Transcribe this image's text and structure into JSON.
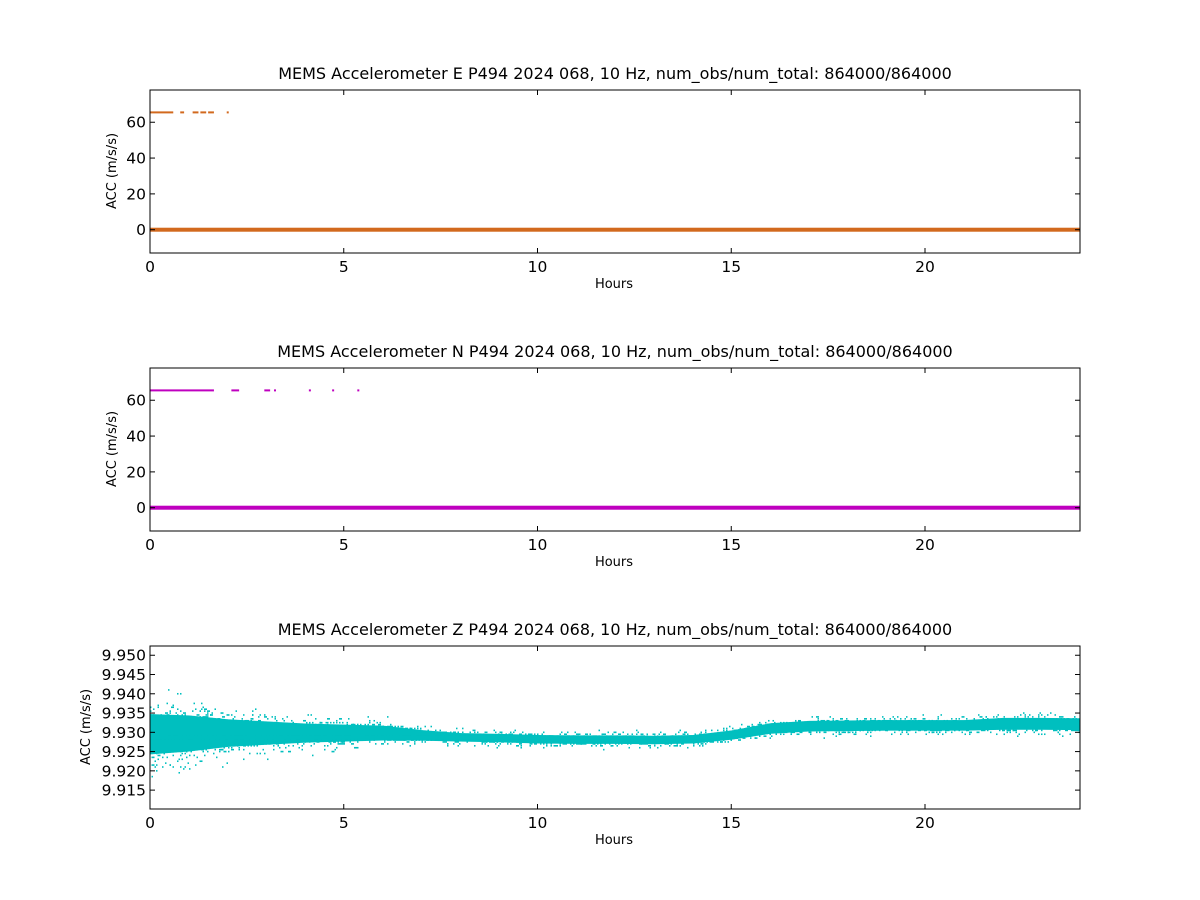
{
  "chart_data": [
    {
      "type": "scatter",
      "title": "MEMS Accelerometer E P494 2024 068, 10 Hz, num_obs/num_total: 864000/864000",
      "xlabel": "Hours",
      "ylabel": "ACC (m/s/s)",
      "xlim": [
        0,
        24
      ],
      "ylim": [
        -13,
        78
      ],
      "xticks": [
        "0",
        "5",
        "10",
        "15",
        "20"
      ],
      "yticks": [
        "0",
        "20",
        "40",
        "60"
      ],
      "grid": false,
      "color": "#d2691e",
      "series": [
        {
          "baseline": {
            "x_range": [
              0,
              24
            ],
            "y": 0
          },
          "outliers": {
            "y": 65.5,
            "segments": [
              [
                0,
                0.6
              ],
              [
                0.78,
                0.88
              ],
              [
                1.1,
                1.25
              ],
              [
                1.3,
                1.45
              ],
              [
                1.5,
                1.65
              ],
              [
                1.98,
                2.01
              ]
            ]
          }
        }
      ]
    },
    {
      "type": "scatter",
      "title": "MEMS Accelerometer N P494 2024 068, 10 Hz, num_obs/num_total: 864000/864000",
      "xlabel": "Hours",
      "ylabel": "ACC (m/s/s)",
      "xlim": [
        0,
        24
      ],
      "ylim": [
        -13,
        78
      ],
      "xticks": [
        "0",
        "5",
        "10",
        "15",
        "20"
      ],
      "yticks": [
        "0",
        "20",
        "40",
        "60"
      ],
      "grid": false,
      "color": "#bf00bf",
      "series": [
        {
          "baseline": {
            "x_range": [
              0,
              24
            ],
            "y": 0
          },
          "outliers": {
            "y": 65.5,
            "segments": [
              [
                0,
                1.65
              ],
              [
                2.1,
                2.3
              ],
              [
                2.95,
                3.1
              ],
              [
                3.2,
                3.25
              ],
              [
                4.1,
                4.15
              ],
              [
                4.7,
                4.75
              ],
              [
                5.35,
                5.4
              ]
            ]
          }
        }
      ]
    },
    {
      "type": "scatter",
      "title": "MEMS Accelerometer Z P494 2024 068, 10 Hz, num_obs/num_total: 864000/864000",
      "xlabel": "Hours",
      "ylabel": "ACC (m/s/s)",
      "xlim": [
        0,
        24
      ],
      "ylim": [
        9.9101,
        9.9524
      ],
      "xticks": [
        "0",
        "5",
        "10",
        "15",
        "20"
      ],
      "yticks": [
        "9.915",
        "9.920",
        "9.925",
        "9.930",
        "9.935",
        "9.940",
        "9.945",
        "9.950"
      ],
      "grid": false,
      "color": "#00bfbf",
      "series": [
        {
          "x": [
            0,
            1,
            2,
            3,
            4,
            5,
            6,
            7,
            8,
            9,
            10,
            11,
            12,
            13,
            14,
            15,
            16,
            17,
            18,
            19,
            20,
            21,
            22,
            23,
            24
          ],
          "y": [
            9.9295,
            9.9297,
            9.9298,
            9.9298,
            9.9298,
            9.9298,
            9.9298,
            9.9292,
            9.9287,
            9.9285,
            9.9282,
            9.9281,
            9.9281,
            9.928,
            9.9282,
            9.9293,
            9.931,
            9.9316,
            9.9317,
            9.9318,
            9.9318,
            9.9318,
            9.9322,
            9.9322,
            9.9321
          ],
          "spread": [
            0.0095,
            0.0085,
            0.0065,
            0.0055,
            0.0045,
            0.004,
            0.0035,
            0.0025,
            0.002,
            0.002,
            0.002,
            0.002,
            0.002,
            0.002,
            0.002,
            0.0022,
            0.0025,
            0.0025,
            0.0025,
            0.0025,
            0.0025,
            0.0025,
            0.0028,
            0.0028,
            0.0028
          ]
        }
      ]
    }
  ]
}
